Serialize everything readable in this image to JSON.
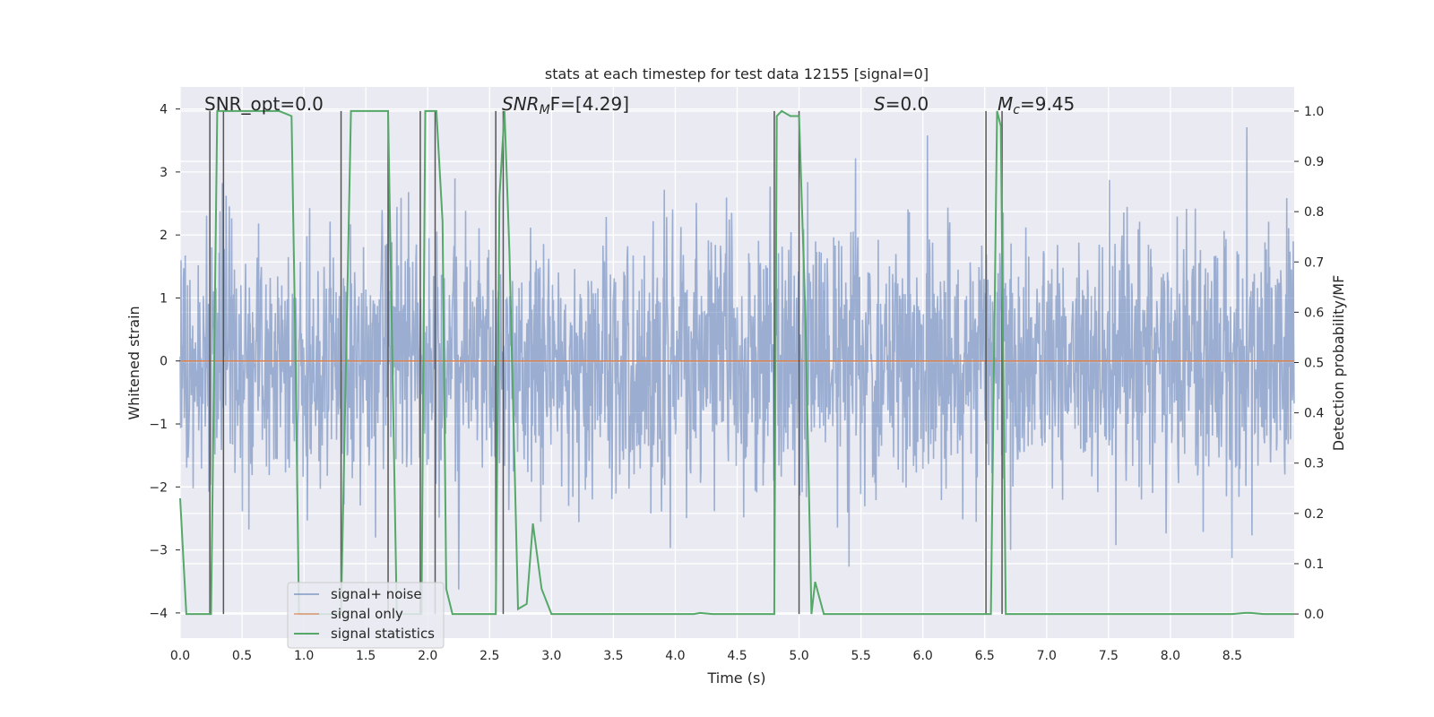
{
  "chart_data": {
    "type": "line",
    "title": "stats at each timestep for test data 12155 [signal=0]",
    "xlabel": "Time (s)",
    "ylabel": "Whitened strain",
    "ylabel_right": "Detection probability/MF",
    "xlim": [
      0.0,
      9.0
    ],
    "ylim": [
      -4.4,
      4.35
    ],
    "ylim_right": [
      -0.048,
      1.048
    ],
    "x_ticks": [
      "0.0",
      "0.5",
      "1.0",
      "1.5",
      "2.0",
      "2.5",
      "3.0",
      "3.5",
      "4.0",
      "4.5",
      "5.0",
      "5.5",
      "6.0",
      "6.5",
      "7.0",
      "7.5",
      "8.0",
      "8.5"
    ],
    "y_ticks": [
      "4",
      "3",
      "2",
      "1",
      "0",
      "−1",
      "−2",
      "−3",
      "−4"
    ],
    "y_tick_values": [
      4,
      3,
      2,
      1,
      0,
      -1,
      -2,
      -3,
      -4
    ],
    "y_right_ticks": [
      "1.0",
      "0.9",
      "0.8",
      "0.7",
      "0.6",
      "0.5",
      "0.4",
      "0.3",
      "0.2",
      "0.1",
      "0.0"
    ],
    "y_right_tick_values": [
      1.0,
      0.9,
      0.8,
      0.7,
      0.6,
      0.5,
      0.4,
      0.3,
      0.2,
      0.1,
      0.0
    ],
    "annotations": {
      "snr_opt": "SNR_opt=0.0",
      "snr_mf_base": "SNR",
      "snr_mf_sub": "M",
      "snr_mf_rest": "F=[4.29]",
      "s_sym": "S",
      "s_val": "=0.0",
      "mc_base": "M",
      "mc_sub": "c",
      "mc_val": "=9.45"
    },
    "legend": {
      "location": "lower-left",
      "entries": [
        "signal+ noise",
        "signal only",
        "signal statistics"
      ]
    },
    "series": [
      {
        "name": "signal+ noise",
        "color": "#4c72b0",
        "axis": "left",
        "description": "whitened noisy strain, roughly Gaussian, amplitude about ±2.5 with spikes to ±4",
        "amplitude_range": [
          -4.0,
          4.0
        ]
      },
      {
        "name": "signal only",
        "color": "#dd8452",
        "axis": "left",
        "x": [
          0.0,
          9.0
        ],
        "y": [
          0.0,
          0.0
        ]
      },
      {
        "name": "signal statistics",
        "color": "#55a868",
        "axis": "right",
        "x": [
          0.0,
          0.05,
          0.15,
          0.22,
          0.25,
          0.3,
          0.4,
          0.5,
          0.6,
          0.7,
          0.8,
          0.9,
          0.93,
          0.96,
          1.0,
          1.1,
          1.2,
          1.3,
          1.38,
          1.45,
          1.6,
          1.68,
          1.75,
          1.85,
          1.9,
          1.95,
          1.98,
          2.02,
          2.07,
          2.12,
          2.15,
          2.2,
          2.28,
          2.35,
          2.5,
          2.55,
          2.58,
          2.62,
          2.66,
          2.73,
          2.8,
          2.85,
          2.92,
          3.0,
          3.5,
          4.0,
          4.15,
          4.2,
          4.3,
          4.5,
          4.8,
          4.82,
          4.86,
          4.93,
          5.0,
          5.05,
          5.1,
          5.13,
          5.2,
          5.3,
          5.5,
          6.0,
          6.45,
          6.5,
          6.55,
          6.6,
          6.63,
          6.67,
          6.7,
          7.0,
          7.5,
          8.0,
          8.5,
          8.6,
          8.65,
          8.75,
          9.0
        ],
        "y": [
          0.23,
          0.0,
          0.0,
          0.0,
          0.0,
          1.0,
          1.0,
          1.0,
          1.0,
          1.0,
          1.0,
          0.99,
          0.55,
          0.0,
          0.0,
          0.0,
          0.0,
          0.0,
          1.0,
          1.0,
          1.0,
          1.0,
          0.0,
          0.0,
          0.0,
          0.0,
          1.0,
          1.0,
          1.0,
          0.78,
          0.05,
          0.0,
          0.0,
          0.0,
          0.0,
          0.0,
          0.83,
          1.0,
          0.72,
          0.01,
          0.02,
          0.18,
          0.05,
          0.0,
          0.0,
          0.0,
          0.0,
          0.002,
          0.0,
          0.0,
          0.0,
          0.99,
          1.0,
          0.99,
          0.99,
          0.6,
          0.0,
          0.064,
          0.0,
          0.0,
          0.0,
          0.0,
          0.0,
          0.0,
          0.0,
          1.0,
          0.97,
          0.0,
          0.0,
          0.0,
          0.0,
          0.0,
          0.0,
          0.002,
          0.002,
          0.0,
          0.0
        ]
      }
    ],
    "vertical_markers": [
      0.24,
      0.35,
      1.3,
      1.68,
      1.94,
      2.06,
      2.55,
      2.61,
      4.8,
      5.0,
      6.51,
      6.64
    ]
  }
}
